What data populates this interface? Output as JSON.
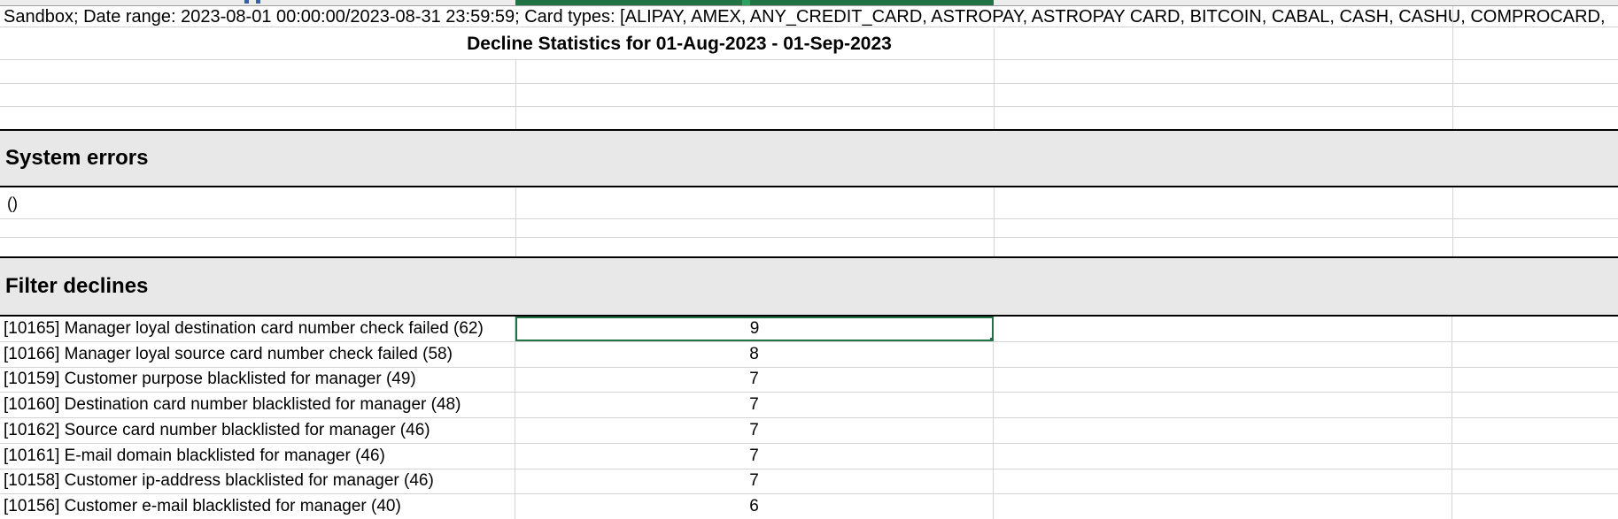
{
  "meta_row": {
    "text": "Sandbox; Date range: 2023-08-01 00:00:00/2023-08-31 23:59:59; Card types: [ALIPAY, AMEX, ANY_CREDIT_CARD, ASTROPAY, ASTROPAY CARD, BITCOIN, CABAL, CASH, CASHU, COMPROCARD,"
  },
  "title": "Decline Statistics for 01-Aug-2023 - 01-Sep-2023",
  "sections": {
    "system_errors": {
      "label": "System errors",
      "rows": [
        {
          "label": "()",
          "value": ""
        }
      ]
    },
    "filter_declines": {
      "label": "Filter declines",
      "rows": [
        {
          "label": "[10165] Manager loyal destination card number check failed (62)",
          "value": "9"
        },
        {
          "label": "[10166] Manager loyal source card number check failed (58)",
          "value": "8"
        },
        {
          "label": "[10159] Customer purpose blacklisted for manager (49)",
          "value": "7"
        },
        {
          "label": "[10160] Destination card number blacklisted for manager (48)",
          "value": "7"
        },
        {
          "label": "[10162] Source card number blacklisted for manager (46)",
          "value": "7"
        },
        {
          "label": "[10161] E-mail domain blacklisted for manager (46)",
          "value": "7"
        },
        {
          "label": "[10158] Customer ip-address blacklisted for manager (46)",
          "value": "7"
        },
        {
          "label": "[10156] Customer e-mail blacklisted for manager (40)",
          "value": "6"
        }
      ]
    }
  },
  "selection": {
    "row_index": 0,
    "cell_value": "9"
  },
  "colors": {
    "selection_green": "#217346",
    "band_gray": "#e8e8e8",
    "gridline": "#d4d4d4",
    "section_border": "#000000"
  }
}
